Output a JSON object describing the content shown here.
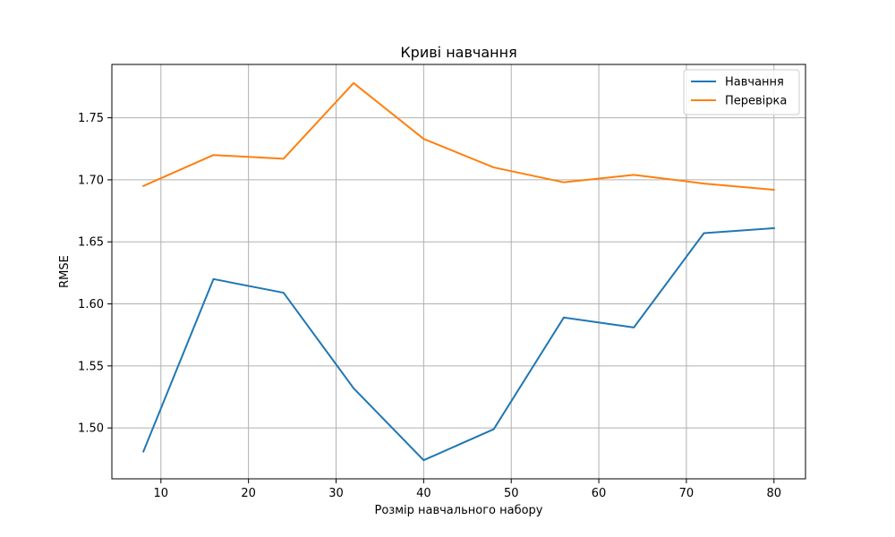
{
  "chart_data": {
    "type": "line",
    "title": "Криві навчання",
    "xlabel": "Розмір навчального набору",
    "ylabel": "RMSE",
    "x": [
      8,
      16,
      24,
      32,
      40,
      48,
      56,
      64,
      72,
      80
    ],
    "series": [
      {
        "name": "Навчання",
        "color": "#1f77b4",
        "values": [
          1.481,
          1.62,
          1.609,
          1.532,
          1.474,
          1.499,
          1.589,
          1.581,
          1.657,
          1.661
        ]
      },
      {
        "name": "Перевірка",
        "color": "#ff7f0e",
        "values": [
          1.695,
          1.72,
          1.717,
          1.778,
          1.733,
          1.71,
          1.698,
          1.704,
          1.697,
          1.692
        ]
      }
    ],
    "xlim": [
      4.4,
      83.6
    ],
    "ylim": [
      1.459,
      1.793
    ],
    "xticks": [
      10,
      20,
      30,
      40,
      50,
      60,
      70,
      80
    ],
    "yticks": [
      1.5,
      1.55,
      1.6,
      1.65,
      1.7,
      1.75
    ],
    "ytick_labels": [
      "1.50",
      "1.55",
      "1.60",
      "1.65",
      "1.70",
      "1.75"
    ],
    "grid": true,
    "legend_position": "top-right"
  }
}
